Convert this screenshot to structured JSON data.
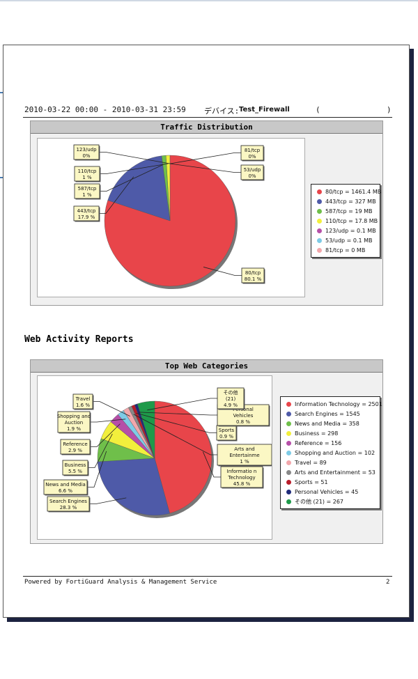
{
  "header": {
    "date_range": "2010-03-22 00:00 - 2010-03-31 23:59",
    "device_label": "デバイス:",
    "device_name": "Test_Firewall",
    "paren_open": "(",
    "paren_close": ")"
  },
  "section_title": "Web Activity Reports",
  "footer": {
    "text": "Powered by FortiGuard Analysis & Management Service",
    "page": "2"
  },
  "chart_data": [
    {
      "type": "pie",
      "title": "Traffic Distribution",
      "slices": [
        {
          "legend": "80/tcp = 1461.4 MB",
          "label": "80/tcp",
          "pct": "80.1 %",
          "value": 1461.4,
          "color": "#e8454a"
        },
        {
          "legend": "443/tcp = 327 MB",
          "label": "443/tcp",
          "pct": "17.9 %",
          "value": 327,
          "color": "#4e5aa8"
        },
        {
          "legend": "587/tcp = 19 MB",
          "label": "587/tcp",
          "pct": "1 %",
          "value": 19,
          "color": "#6fbf4a"
        },
        {
          "legend": "110/tcp = 17.8 MB",
          "label": "110/tcp",
          "pct": "1 %",
          "value": 17.8,
          "color": "#f2ef3c"
        },
        {
          "legend": "123/udp = 0.1 MB",
          "label": "123/udp",
          "pct": "0%",
          "value": 0.1,
          "color": "#b64fa8"
        },
        {
          "legend": "53/udp = 0.1 MB",
          "label": "53/udp",
          "pct": "0%",
          "value": 0.1,
          "color": "#7ecbe6"
        },
        {
          "legend": "81/tcp = 0 MB",
          "label": "81/tcp",
          "pct": "0%",
          "value": 0,
          "color": "#f2a7ab"
        }
      ]
    },
    {
      "type": "pie",
      "title": "Top Web Categories",
      "slices": [
        {
          "legend": "Information Technology = 2501",
          "label": "Informatio n Technology",
          "pct": "45.8 %",
          "value": 2501,
          "color": "#e8454a"
        },
        {
          "legend": "Search Engines = 1545",
          "label": "Search Engines",
          "pct": "28.3 %",
          "value": 1545,
          "color": "#4e5aa8"
        },
        {
          "legend": "News and Media = 358",
          "label": "News and Media",
          "pct": "6.6 %",
          "value": 358,
          "color": "#6fbf4a"
        },
        {
          "legend": "Business = 298",
          "label": "Business",
          "pct": "5.5 %",
          "value": 298,
          "color": "#f2ef3c"
        },
        {
          "legend": "Reference = 156",
          "label": "Reference",
          "pct": "2.9 %",
          "value": 156,
          "color": "#b64fa8"
        },
        {
          "legend": "Shopping and Auction = 102",
          "label": "Shopping and Auction",
          "pct": "1.9 %",
          "value": 102,
          "color": "#7ecbe6"
        },
        {
          "legend": "Travel = 89",
          "label": "Travel",
          "pct": "1.6 %",
          "value": 89,
          "color": "#f2a7ab"
        },
        {
          "legend": "Arts and Entertainment = 53",
          "label": "Arts and Entertainme",
          "pct": "1 %",
          "value": 53,
          "color": "#888888"
        },
        {
          "legend": "Sports = 51",
          "label": "Sports",
          "pct": "0.9 %",
          "value": 51,
          "color": "#b81c2a"
        },
        {
          "legend": "Personal Vehicles = 45",
          "label": "Personal Vehicles",
          "pct": "0.8 %",
          "value": 45,
          "color": "#1f2b7a"
        },
        {
          "legend": "その他 (21) = 267",
          "label": "その他 (21)",
          "pct": "4.9 %",
          "value": 267,
          "color": "#1e9a4a"
        }
      ]
    }
  ]
}
